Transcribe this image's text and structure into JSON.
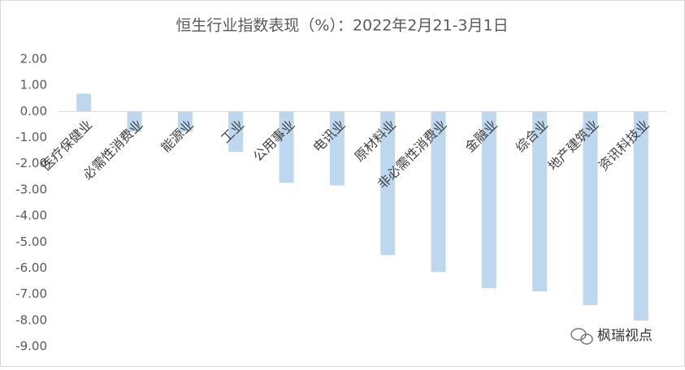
{
  "chart_data": {
    "type": "bar",
    "title": "恒生行业指数表现（%）：2022年2月21-3月1日",
    "categories": [
      "医疗保健业",
      "必需性消费业",
      "能源业",
      "工业",
      "公用事业",
      "电讯业",
      "原材料业",
      "非必需性消费业",
      "金融业",
      "综合业",
      "地产建筑业",
      "资讯科技业"
    ],
    "values": [
      0.68,
      -0.78,
      -0.78,
      -1.55,
      -2.73,
      -2.83,
      -5.5,
      -6.15,
      -6.77,
      -6.89,
      -7.42,
      -8.01
    ],
    "color": "#bdd7ee",
    "ylim": [
      -9,
      2
    ],
    "yticks": [
      {
        "value": 2,
        "label": "2.00"
      },
      {
        "value": 1,
        "label": "1.00"
      },
      {
        "value": 0,
        "label": "0.00"
      },
      {
        "value": -1,
        "label": "-1.00"
      },
      {
        "value": -2,
        "label": "-2.00"
      },
      {
        "value": -3,
        "label": "-3.00"
      },
      {
        "value": -4,
        "label": "-4.00"
      },
      {
        "value": -5,
        "label": "-5.00"
      },
      {
        "value": -6,
        "label": "-6.00"
      },
      {
        "value": -7,
        "label": "-7.00"
      },
      {
        "value": -8,
        "label": "-8.00"
      },
      {
        "value": -9,
        "label": "-9.00"
      }
    ],
    "grid": false
  },
  "watermark": "枫瑞视点"
}
